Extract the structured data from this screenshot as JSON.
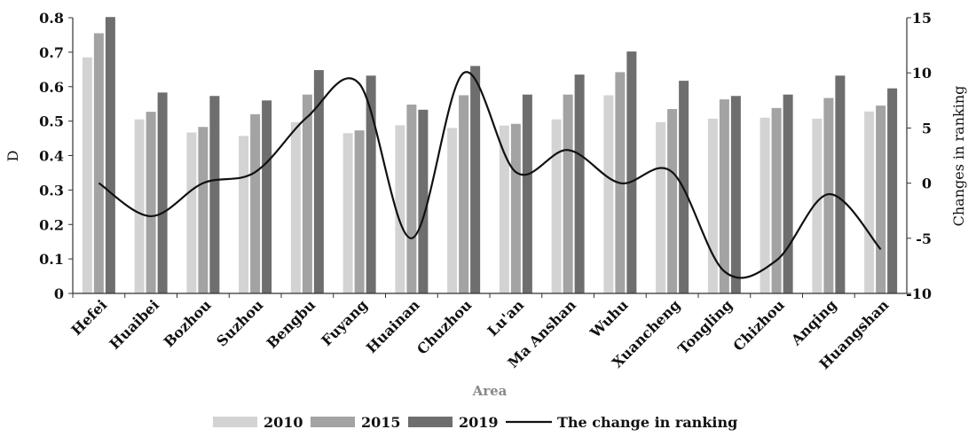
{
  "chart_data": {
    "type": "bar",
    "categories": [
      "Hefei",
      "Huaibei",
      "Bozhou",
      "Suzhou",
      "Bengbu",
      "Fuyang",
      "Huainan",
      "Chuzhou",
      "Lu'an",
      "Ma Anshan",
      "Wuhu",
      "Xuancheng",
      "Tongling",
      "Chizhou",
      "Anqing",
      "Huangshan"
    ],
    "series": [
      {
        "name": "2010",
        "color": "#d3d3d3",
        "values": [
          0.685,
          0.505,
          0.467,
          0.457,
          0.497,
          0.465,
          0.488,
          0.48,
          0.487,
          0.505,
          0.575,
          0.497,
          0.507,
          0.51,
          0.507,
          0.528
        ]
      },
      {
        "name": "2015",
        "color": "#a3a3a3",
        "values": [
          0.755,
          0.527,
          0.483,
          0.52,
          0.577,
          0.473,
          0.548,
          0.575,
          0.492,
          0.577,
          0.642,
          0.535,
          0.563,
          0.538,
          0.567,
          0.545
        ]
      },
      {
        "name": "2019",
        "color": "#6e6e6e",
        "values": [
          0.802,
          0.583,
          0.573,
          0.56,
          0.648,
          0.632,
          0.533,
          0.66,
          0.577,
          0.635,
          0.702,
          0.617,
          0.573,
          0.577,
          0.632,
          0.595
        ]
      }
    ],
    "line_series": {
      "name": "The change in ranking",
      "color": "#111111",
      "values": [
        0,
        -3,
        0,
        1,
        6,
        9,
        -5,
        10,
        1,
        3,
        0,
        1,
        -8,
        -7,
        -1,
        -6
      ]
    },
    "xlabel": "Area",
    "ylabel": "D",
    "y2label": "Changes in ranking",
    "ylim": [
      0,
      0.8
    ],
    "yticks": [
      "0",
      "0.1",
      "0.2",
      "0.3",
      "0.4",
      "0.5",
      "0.6",
      "0.7",
      "0.8"
    ],
    "y2lim": [
      -10,
      15
    ],
    "y2ticks": [
      "-10",
      "-5",
      "0",
      "5",
      "10",
      "15"
    ],
    "grid": false,
    "legend_position": "bottom"
  }
}
